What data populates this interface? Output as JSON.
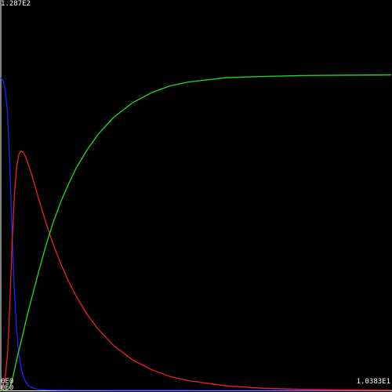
{
  "chart_data": {
    "type": "line",
    "title": "",
    "xlabel": "",
    "ylabel": "",
    "grid": false,
    "legend": "none",
    "background": "#000000",
    "axis_color": "#ffffff",
    "tick_labels": {
      "y_max": "1.287E2",
      "y_min": "0E0",
      "x_min": "0E0",
      "x_max": "1.0383E1"
    },
    "xlim": [
      0,
      10.383
    ],
    "ylim": [
      0,
      128.7
    ],
    "series": [
      {
        "color": "#2222ff",
        "x": [
          0,
          0.06,
          0.12,
          0.18,
          0.24,
          0.3,
          0.36,
          0.42,
          0.48,
          0.54,
          0.6,
          0.66,
          0.72,
          0.8,
          0.9,
          1.0,
          1.2,
          1.5,
          2.0,
          3.0,
          5.0,
          7.0,
          9.0,
          10.383
        ],
        "y": [
          103.0,
          102.1,
          99.1,
          91.4,
          74.1,
          52.0,
          33.0,
          20.2,
          12.1,
          7.4,
          4.6,
          2.9,
          1.8,
          1.1,
          0.6,
          0.35,
          0.15,
          0.08,
          0.04,
          0.02,
          0.01,
          0.0,
          0.0,
          0.0
        ]
      },
      {
        "color": "#ee2222",
        "x": [
          0,
          0.06,
          0.12,
          0.18,
          0.24,
          0.3,
          0.36,
          0.42,
          0.48,
          0.54,
          0.6,
          0.66,
          0.72,
          0.8,
          0.9,
          1.0,
          1.2,
          1.4,
          1.6,
          1.8,
          2.0,
          2.3,
          2.6,
          3.0,
          3.5,
          4.0,
          4.5,
          5.0,
          6.0,
          7.0,
          8.0,
          9.0,
          10.383
        ],
        "y": [
          0.0,
          1.2,
          4.5,
          12.1,
          28.0,
          48.3,
          64.2,
          73.5,
          77.8,
          78.9,
          78.4,
          77.0,
          75.0,
          72.0,
          67.8,
          63.5,
          55.3,
          48.0,
          41.6,
          36.0,
          31.2,
          25.0,
          20.0,
          14.8,
          10.1,
          6.9,
          4.6,
          3.2,
          1.5,
          0.7,
          0.35,
          0.18,
          0.1
        ]
      },
      {
        "color": "#22dd22",
        "x": [
          0,
          0.06,
          0.12,
          0.18,
          0.24,
          0.3,
          0.36,
          0.42,
          0.48,
          0.54,
          0.6,
          0.66,
          0.72,
          0.8,
          0.9,
          1.0,
          1.2,
          1.4,
          1.6,
          1.8,
          2.0,
          2.3,
          2.6,
          3.0,
          3.5,
          4.0,
          4.5,
          5.0,
          6.0,
          7.0,
          8.0,
          9.0,
          10.383
        ],
        "y": [
          0.0,
          0.01,
          0.1,
          0.4,
          1.0,
          3.3,
          6.5,
          10.0,
          13.1,
          16.1,
          19.2,
          22.5,
          25.5,
          29.4,
          34.1,
          38.8,
          47.8,
          55.6,
          62.3,
          68.0,
          73.2,
          79.4,
          84.6,
          90.0,
          94.8,
          98.1,
          100.4,
          101.7,
          103.1,
          103.5,
          103.8,
          103.9,
          104.0
        ]
      }
    ]
  }
}
